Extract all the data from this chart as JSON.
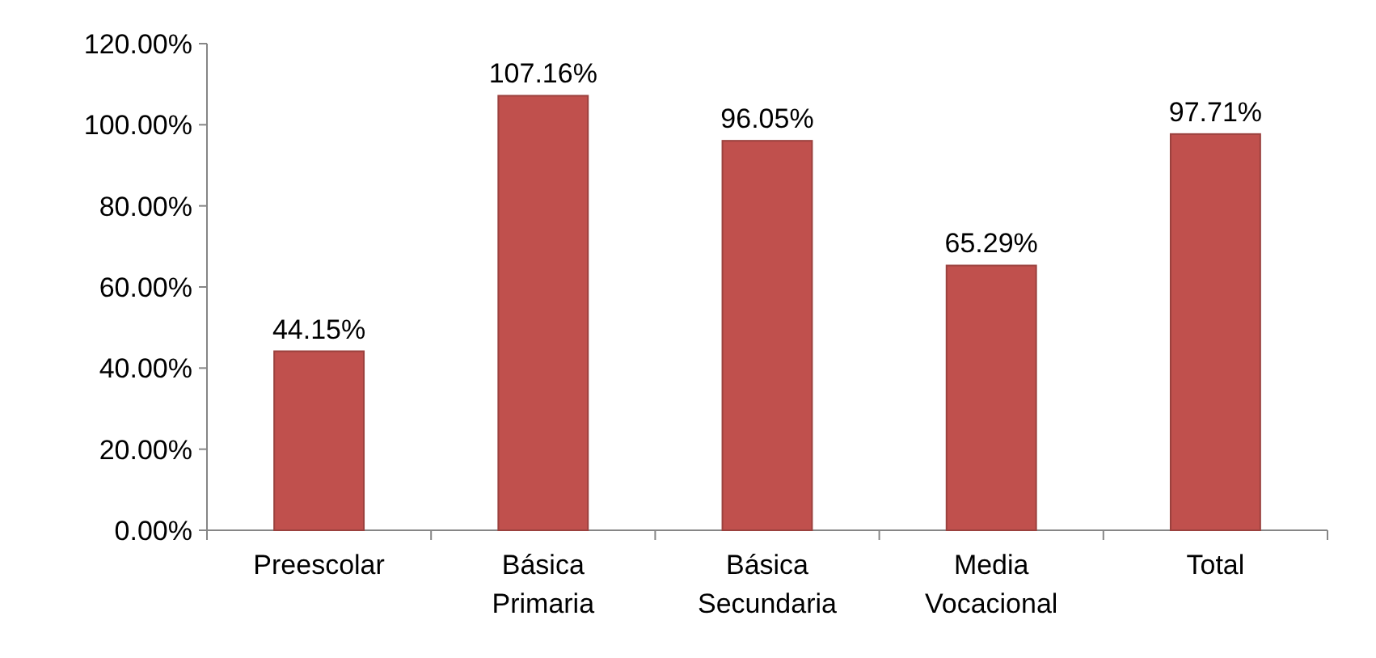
{
  "chart_data": {
    "type": "bar",
    "categories": [
      "Preescolar",
      "Básica Primaria",
      "Básica Secundaria",
      "Media Vocacional",
      "Total"
    ],
    "values": [
      44.15,
      107.16,
      96.05,
      65.29,
      97.71
    ],
    "color": "#c0504d",
    "value_labels": [
      "44.15%",
      "107.16%",
      "96.05%",
      "65.29%",
      "97.71%"
    ],
    "ylim": [
      0,
      120
    ],
    "yticks": [
      {
        "value": 0,
        "label": "0.00%"
      },
      {
        "value": 20,
        "label": "20.00%"
      },
      {
        "value": 40,
        "label": "40.00%"
      },
      {
        "value": 60,
        "label": "60.00%"
      },
      {
        "value": 80,
        "label": "80.00%"
      },
      {
        "value": 100,
        "label": "100.00%"
      },
      {
        "value": 120,
        "label": "120.00%"
      }
    ],
    "grid": false
  }
}
